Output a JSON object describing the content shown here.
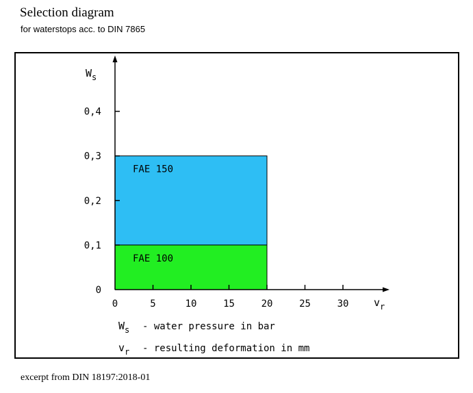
{
  "title": "Selection diagram",
  "subtitle": "for waterstops acc. to DIN 7865",
  "footer": "excerpt from DIN 18197:2018-01",
  "colors": {
    "fae150": "#2ebef4",
    "fae100": "#22ee22",
    "axis": "#000000"
  },
  "chart_data": {
    "type": "area",
    "x_axis": {
      "label_main": "v",
      "label_sub": "r",
      "ticks": [
        0,
        5,
        10,
        15,
        20,
        25,
        30
      ],
      "range": [
        0,
        35
      ]
    },
    "y_axis": {
      "label_main": "W",
      "label_sub": "s",
      "ticks": [
        "0",
        "0,1",
        "0,2",
        "0,3",
        "0,4"
      ],
      "tick_values": [
        0,
        0.1,
        0.2,
        0.3,
        0.4
      ],
      "range": [
        0,
        0.5
      ]
    },
    "regions": [
      {
        "name": "FAE 150",
        "x": [
          0,
          20
        ],
        "y": [
          0.1,
          0.3
        ]
      },
      {
        "name": "FAE 100",
        "x": [
          0,
          20
        ],
        "y": [
          0,
          0.1
        ]
      }
    ],
    "legend": [
      {
        "sym_main": "W",
        "sym_sub": "s",
        "text": "- water pressure in bar"
      },
      {
        "sym_main": "v",
        "sym_sub": "r",
        "text": "- resulting deformation in mm"
      }
    ]
  }
}
